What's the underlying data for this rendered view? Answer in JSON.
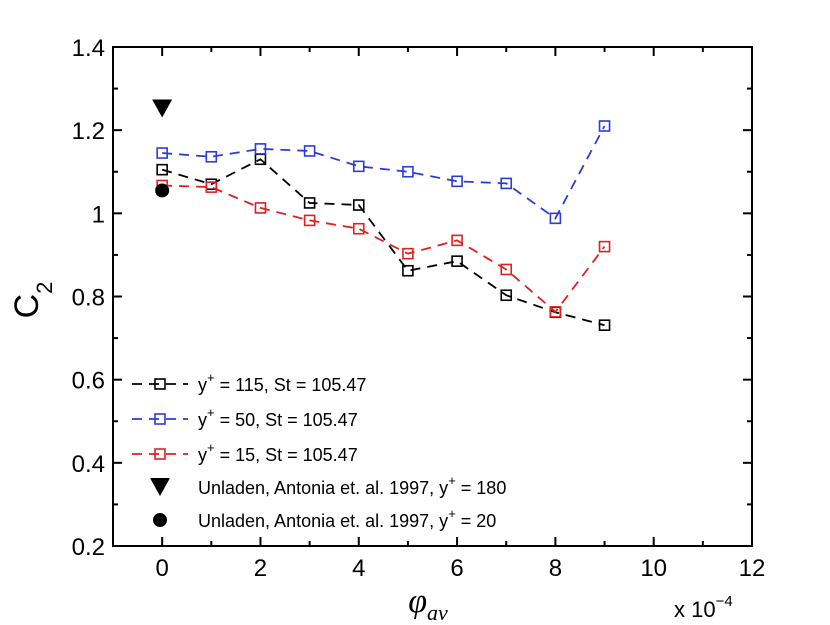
{
  "chart_data": {
    "type": "line",
    "title": "",
    "xlabel": "φ",
    "xlabel_sub": "av",
    "ylabel": "C",
    "ylabel_sub": "2",
    "xlim": [
      -1,
      12
    ],
    "ylim": [
      0.2,
      1.4
    ],
    "x_ticks": [
      0,
      2,
      4,
      6,
      8,
      10,
      12
    ],
    "x_tick_labels": [
      "0",
      "2",
      "4",
      "6",
      "8",
      "10",
      "12"
    ],
    "y_ticks": [
      0.2,
      0.4,
      0.6,
      0.8,
      1.0,
      1.2,
      1.4
    ],
    "y_tick_labels": [
      "0.2",
      "0.4",
      "0.6",
      "0.8",
      "1",
      "1.2",
      "1.4"
    ],
    "x_multiplier": {
      "prefix": "x 10",
      "exponent": "−4"
    },
    "grid": false,
    "legend_position": "bottom-left",
    "series": [
      {
        "name": "y+ = 115, St = 105.47",
        "label_main": "y",
        "label_sup": "+",
        "label_rest": " = 115, St = 105.47",
        "color": "#000000",
        "marker": "square-open",
        "line": "dashed",
        "x": [
          0,
          1,
          2,
          3,
          4,
          5,
          6,
          7,
          8,
          9
        ],
        "values": [
          1.105,
          1.07,
          1.13,
          1.025,
          1.02,
          0.862,
          0.885,
          0.803,
          0.762,
          0.731
        ]
      },
      {
        "name": "y+ = 50, St = 105.47",
        "label_main": "y",
        "label_sup": "+",
        "label_rest": " = 50, St = 105.47",
        "color": "#2b3cd9",
        "marker": "square-open",
        "line": "dashed",
        "x": [
          0,
          1,
          2,
          3,
          4,
          5,
          6,
          7,
          8,
          9
        ],
        "values": [
          1.145,
          1.136,
          1.155,
          1.15,
          1.113,
          1.1,
          1.077,
          1.072,
          0.988,
          1.21
        ]
      },
      {
        "name": "y+ = 15, St = 105.47",
        "label_main": "y",
        "label_sup": "+",
        "label_rest": " = 15, St = 105.47",
        "color": "#e02020",
        "marker": "square-open",
        "line": "dashed",
        "x": [
          0,
          1,
          2,
          3,
          4,
          5,
          6,
          7,
          8,
          9
        ],
        "values": [
          1.067,
          1.063,
          1.013,
          0.983,
          0.963,
          0.903,
          0.935,
          0.865,
          0.763,
          0.92
        ]
      },
      {
        "name": "Unladen, Antonia et. al. 1997, y+ = 180",
        "label_main": "Unladen, Antonia et. al. 1997, y",
        "label_sup": "+",
        "label_rest": " = 180",
        "color": "#000000",
        "marker": "triangle-down-filled",
        "line": "none",
        "x": [
          0
        ],
        "values": [
          1.252
        ]
      },
      {
        "name": "Unladen, Antonia et. al. 1997, y+ = 20",
        "label_main": "Unladen, Antonia et. al. 1997, y",
        "label_sup": "+",
        "label_rest": " = 20",
        "color": "#000000",
        "marker": "circle-filled",
        "line": "none",
        "x": [
          0
        ],
        "values": [
          1.055
        ]
      }
    ]
  }
}
